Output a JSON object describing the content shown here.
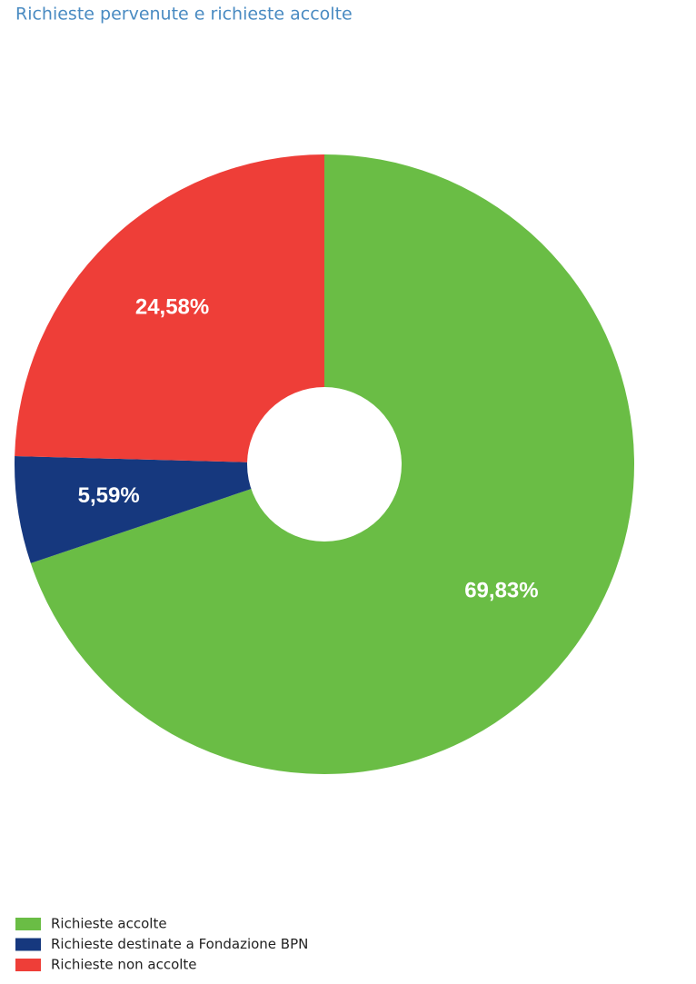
{
  "chart_data": {
    "type": "pie",
    "title": "Richieste pervenute e richieste accolte",
    "categories": [
      "Richieste accolte",
      "Richieste destinate a Fondazione BPN",
      "Richieste non accolte"
    ],
    "values": [
      69.83,
      5.59,
      24.58
    ],
    "value_labels": [
      "69,83%",
      "5,59%",
      "24,58%"
    ],
    "colors": [
      "#6abd45",
      "#16387e",
      "#ee3e38"
    ]
  }
}
